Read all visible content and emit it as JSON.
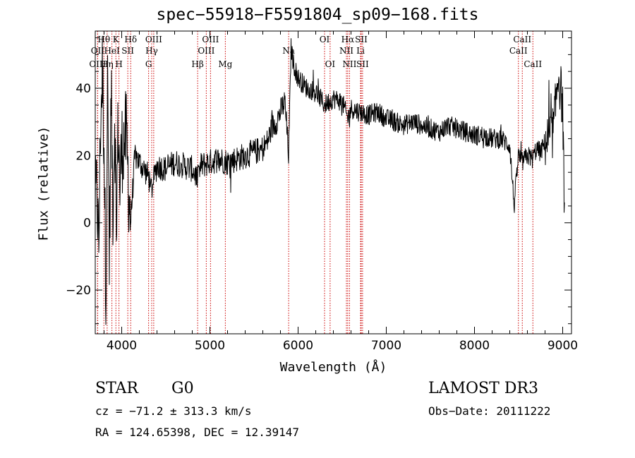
{
  "header": {
    "title": "spec−55918−F5591804_sp09−168.fits"
  },
  "object": {
    "class": "STAR",
    "subclass": "G0",
    "survey": "LAMOST DR3",
    "redshift_text": "cz = −71.2 ± 313.3 km/s",
    "obs_date_text": "Obs−Date: 20111222",
    "coords_text": "RA = 124.65398, DEC =  12.39147"
  },
  "chart_data": {
    "type": "line",
    "title": "spec−55918−F5591804_sp09−168.fits",
    "xlabel": "Wavelength (Å)",
    "ylabel": "Flux (relative)",
    "xlim": [
      3700,
      9100
    ],
    "ylim": [
      -33,
      57
    ],
    "xticks": [
      4000,
      5000,
      6000,
      7000,
      8000,
      9000
    ],
    "xtick_labels": [
      "4000",
      "5000",
      "6000",
      "7000",
      "8000",
      "9000"
    ],
    "yticks": [
      -20,
      0,
      20,
      40
    ],
    "ytick_labels": [
      "−20",
      "0",
      "20",
      "40"
    ],
    "series": [
      {
        "name": "flux",
        "x": [
          3700,
          3720,
          3740,
          3760,
          3780,
          3800,
          3820,
          3840,
          3860,
          3880,
          3900,
          3920,
          3940,
          3960,
          3980,
          4000,
          4050,
          4100,
          4150,
          4200,
          4250,
          4300,
          4340,
          4400,
          4500,
          4600,
          4700,
          4800,
          4861,
          4900,
          5000,
          5100,
          5200,
          5300,
          5400,
          5500,
          5600,
          5650,
          5700,
          5750,
          5800,
          5850,
          5893,
          5920,
          5950,
          6000,
          6100,
          6200,
          6300,
          6400,
          6500,
          6563,
          6600,
          6700,
          6800,
          6900,
          7000,
          7100,
          7200,
          7300,
          7400,
          7500,
          7600,
          7700,
          7800,
          7900,
          8000,
          8100,
          8200,
          8300,
          8400,
          8450,
          8498,
          8542,
          8600,
          8662,
          8700,
          8750,
          8800,
          8850,
          8900,
          8950,
          9000,
          9020
        ],
        "values": [
          5,
          10,
          -8,
          30,
          45,
          25,
          -20,
          40,
          -10,
          38,
          5,
          32,
          0,
          30,
          10,
          22,
          26,
          0,
          20,
          18,
          16,
          14,
          10,
          17,
          16,
          18,
          17,
          16,
          13,
          17,
          18,
          19,
          18,
          19,
          20,
          21,
          22,
          24,
          28,
          30,
          33,
          36,
          20,
          52,
          47,
          43,
          40,
          39,
          35,
          37,
          36,
          31,
          34,
          33,
          32,
          33,
          31,
          30,
          29,
          30,
          29,
          28,
          27,
          29,
          28,
          27,
          26,
          26,
          25,
          25,
          23,
          5,
          20,
          18,
          20,
          19,
          22,
          21,
          24,
          25,
          28,
          45,
          35,
          0
        ]
      }
    ],
    "spectral_lines": [
      {
        "label": "Hθ",
        "wavelength": 3798,
        "row": 0
      },
      {
        "label": "OII",
        "wavelength": 3727,
        "row": 1
      },
      {
        "label": "OIII",
        "wavelength": 3727,
        "row": 2
      },
      {
        "label": "Hη",
        "wavelength": 3835,
        "row": 2
      },
      {
        "label": "HeI",
        "wavelength": 3889,
        "row": 1
      },
      {
        "label": "K",
        "wavelength": 3934,
        "row": 0
      },
      {
        "label": "SII",
        "wavelength": 4069,
        "row": 1
      },
      {
        "label": "H",
        "wavelength": 3969,
        "row": 2
      },
      {
        "label": "Hδ",
        "wavelength": 4102,
        "row": 0
      },
      {
        "label": "OIII",
        "wavelength": 4363,
        "row": 0
      },
      {
        "label": "Hγ",
        "wavelength": 4340,
        "row": 1
      },
      {
        "label": "G",
        "wavelength": 4305,
        "row": 2
      },
      {
        "label": "Hβ",
        "wavelength": 4861,
        "row": 2
      },
      {
        "label": "OIII",
        "wavelength": 5007,
        "row": 0
      },
      {
        "label": "OIII",
        "wavelength": 4959,
        "row": 1
      },
      {
        "label": "Mg",
        "wavelength": 5175,
        "row": 2
      },
      {
        "label": "Na",
        "wavelength": 5893,
        "row": 1
      },
      {
        "label": "OI",
        "wavelength": 6300,
        "row": 0
      },
      {
        "label": "OI",
        "wavelength": 6363,
        "row": 2
      },
      {
        "label": "Hα",
        "wavelength": 6563,
        "row": 0
      },
      {
        "label": "SII",
        "wavelength": 6716,
        "row": 0
      },
      {
        "label": "NII",
        "wavelength": 6548,
        "row": 1
      },
      {
        "label": "Li",
        "wavelength": 6708,
        "row": 1
      },
      {
        "label": "NII",
        "wavelength": 6583,
        "row": 2
      },
      {
        "label": "SII",
        "wavelength": 6731,
        "row": 2
      },
      {
        "label": "CaII",
        "wavelength": 8542,
        "row": 0
      },
      {
        "label": "CaII",
        "wavelength": 8498,
        "row": 1
      },
      {
        "label": "CaII",
        "wavelength": 8662,
        "row": 2
      }
    ],
    "colors": {
      "spectrum": "#000000",
      "line_marker": "#cc0000",
      "axes": "#000000"
    }
  }
}
